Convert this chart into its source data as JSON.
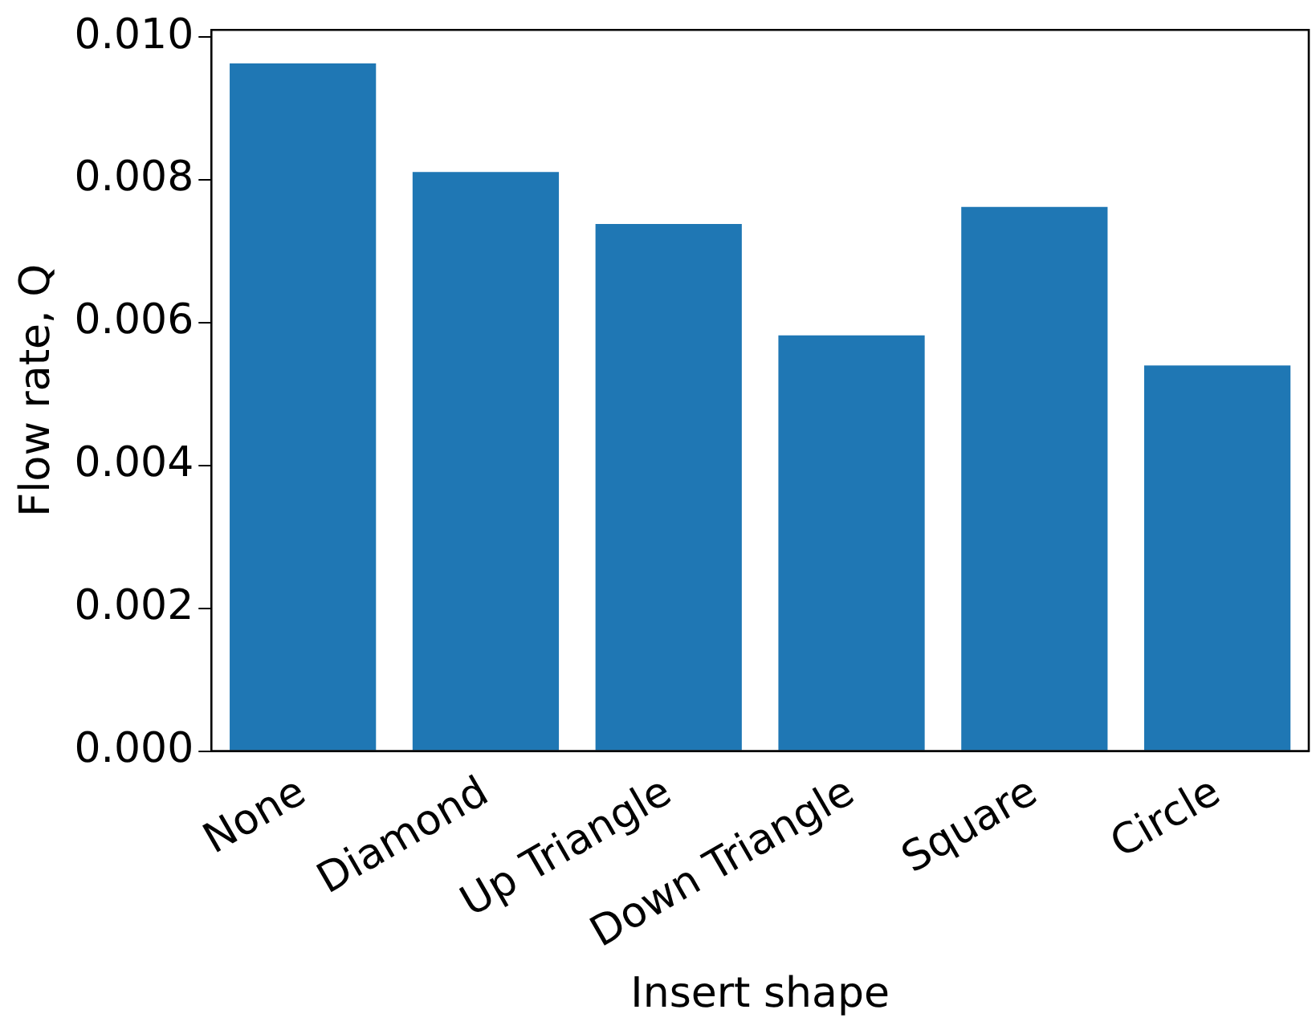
{
  "chart_data": {
    "type": "bar",
    "xlabel": "Insert shape",
    "ylabel": "Flow rate, Q",
    "categories": [
      "None",
      "Diamond",
      "Up Triangle",
      "Down Triangle",
      "Square",
      "Circle"
    ],
    "values": [
      0.00963,
      0.00811,
      0.00738,
      0.00582,
      0.00762,
      0.0054
    ],
    "color": "#1f77b4",
    "ylim": [
      0,
      0.0101
    ],
    "yticks": [
      {
        "value": 0,
        "label": "0.000"
      },
      {
        "value": 0.002,
        "label": "0.002"
      },
      {
        "value": 0.004,
        "label": "0.004"
      },
      {
        "value": 0.006,
        "label": "0.006"
      },
      {
        "value": 0.008,
        "label": "0.008"
      },
      {
        "value": 0.01,
        "label": "0.010"
      }
    ],
    "grid": false,
    "legend": false
  }
}
